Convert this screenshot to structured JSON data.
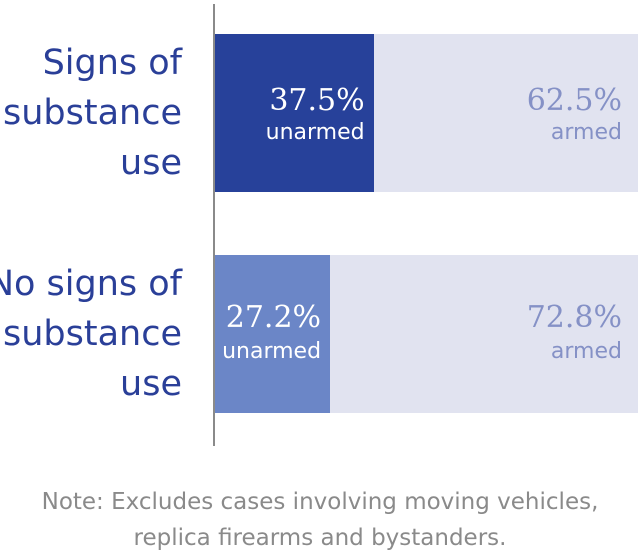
{
  "chart_data": {
    "type": "bar",
    "stacked": true,
    "orientation": "horizontal",
    "categories": [
      "Signs of\nsubstance\nuse",
      "No signs of\nsubstance\nuse"
    ],
    "series": [
      {
        "name": "unarmed",
        "values": [
          37.5,
          27.2
        ],
        "labels": [
          "37.5%",
          "27.2%"
        ],
        "colors": [
          "#27419a",
          "#6b86c7"
        ]
      },
      {
        "name": "armed",
        "values": [
          62.5,
          72.8
        ],
        "labels": [
          "62.5%",
          "72.8%"
        ],
        "color": "#e1e3f0"
      }
    ],
    "xlim": [
      0,
      100
    ],
    "note": "Note: Excludes cases involving moving vehicles,\nreplica firearms and bystanders."
  }
}
